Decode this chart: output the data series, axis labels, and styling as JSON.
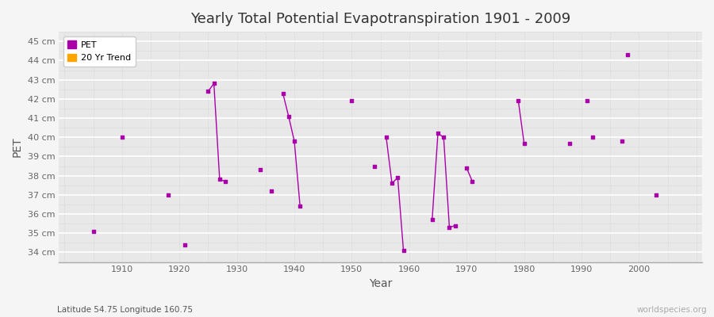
{
  "title": "Yearly Total Potential Evapotranspiration 1901 - 2009",
  "xlabel": "Year",
  "ylabel": "PET",
  "subtitle": "Latitude 54.75 Longitude 160.75",
  "watermark": "worldspecies.org",
  "ylim": [
    33.5,
    45.5
  ],
  "xlim": [
    1899,
    2011
  ],
  "yticks": [
    34,
    35,
    36,
    37,
    38,
    39,
    40,
    41,
    42,
    43,
    44,
    45
  ],
  "ytick_labels": [
    "34 cm",
    "35 cm",
    "36 cm",
    "37 cm",
    "38 cm",
    "39 cm",
    "40 cm",
    "41 cm",
    "42 cm",
    "43 cm",
    "44 cm",
    "45 cm"
  ],
  "bg_color": "#f5f5f5",
  "plot_bg_color": "#e8e8e8",
  "grid_color_major": "#ffffff",
  "grid_color_minor": "#d8d8d8",
  "pet_color": "#aa00aa",
  "trend_color": "#ffa500",
  "legend_labels": [
    "PET",
    "20 Yr Trend"
  ],
  "pet_data": [
    [
      1905,
      35.1
    ],
    [
      1910,
      40.0
    ],
    [
      1918,
      37.0
    ],
    [
      1921,
      34.4
    ],
    [
      1925,
      42.4
    ],
    [
      1926,
      42.8
    ],
    [
      1927,
      37.8
    ],
    [
      1928,
      37.7
    ],
    [
      1934,
      38.3
    ],
    [
      1936,
      37.2
    ],
    [
      1938,
      42.3
    ],
    [
      1939,
      41.1
    ],
    [
      1940,
      39.8
    ],
    [
      1941,
      36.4
    ],
    [
      1950,
      41.9
    ],
    [
      1954,
      38.5
    ],
    [
      1956,
      40.0
    ],
    [
      1957,
      37.6
    ],
    [
      1958,
      37.9
    ],
    [
      1959,
      34.1
    ],
    [
      1964,
      35.7
    ],
    [
      1965,
      40.2
    ],
    [
      1966,
      40.0
    ],
    [
      1967,
      35.3
    ],
    [
      1968,
      35.4
    ],
    [
      1970,
      38.4
    ],
    [
      1971,
      37.7
    ],
    [
      1979,
      41.9
    ],
    [
      1980,
      39.7
    ],
    [
      1988,
      39.7
    ],
    [
      1991,
      41.9
    ],
    [
      1992,
      40.0
    ],
    [
      1997,
      39.8
    ],
    [
      1998,
      44.3
    ],
    [
      2003,
      37.0
    ]
  ],
  "connected_segments": [
    [
      [
        1925,
        42.4
      ],
      [
        1926,
        42.8
      ],
      [
        1927,
        37.8
      ],
      [
        1928,
        37.7
      ]
    ],
    [
      [
        1938,
        42.3
      ],
      [
        1939,
        41.1
      ],
      [
        1940,
        39.8
      ],
      [
        1941,
        36.4
      ]
    ],
    [
      [
        1956,
        40.0
      ],
      [
        1957,
        37.6
      ],
      [
        1958,
        37.9
      ],
      [
        1959,
        34.1
      ]
    ],
    [
      [
        1964,
        35.7
      ],
      [
        1965,
        40.2
      ],
      [
        1966,
        40.0
      ],
      [
        1967,
        35.3
      ],
      [
        1968,
        35.4
      ]
    ],
    [
      [
        1970,
        38.4
      ],
      [
        1971,
        37.7
      ]
    ],
    [
      [
        1979,
        41.9
      ],
      [
        1980,
        39.7
      ]
    ]
  ]
}
